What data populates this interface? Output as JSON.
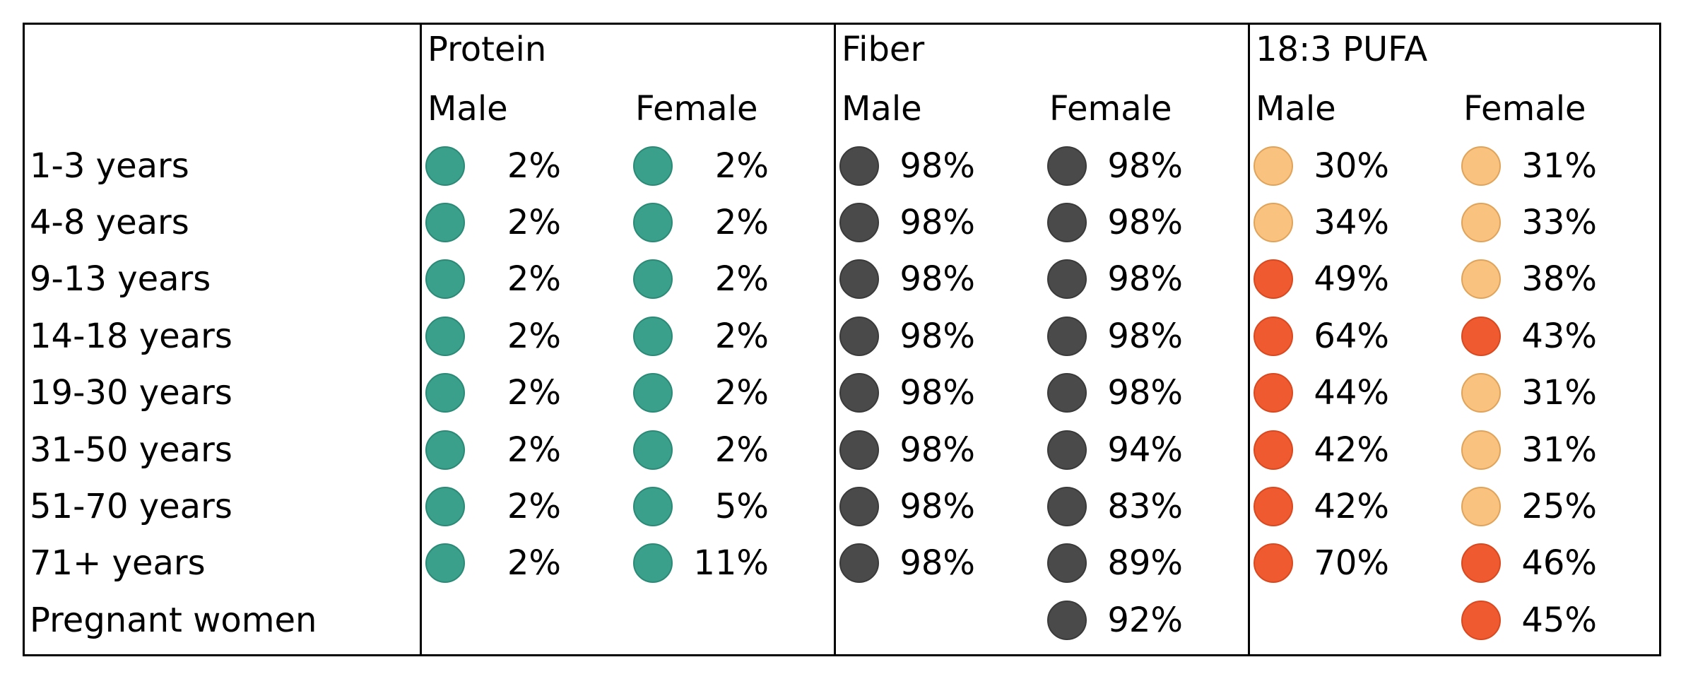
{
  "row_labels": [
    "1-3 years",
    "4-8 years",
    "9-13 years",
    "14-18 years",
    "19-30 years",
    "31-50 years",
    "51-70 years",
    "71+ years",
    "Pregnant women"
  ],
  "groups": [
    {
      "title": "Protein",
      "male_label": "Male",
      "female_label": "Female",
      "male": [
        "2%",
        "2%",
        "2%",
        "2%",
        "2%",
        "2%",
        "2%",
        "2%",
        null
      ],
      "female": [
        "2%",
        "2%",
        "2%",
        "2%",
        "2%",
        "2%",
        "5%",
        "11%",
        null
      ],
      "male_status": [
        "ok",
        "ok",
        "ok",
        "ok",
        "ok",
        "ok",
        "ok",
        "ok",
        null
      ],
      "female_status": [
        "ok",
        "ok",
        "ok",
        "ok",
        "ok",
        "ok",
        "ok",
        "ok",
        null
      ]
    },
    {
      "title": "Fiber",
      "male_label": "Male",
      "female_label": "Female",
      "male": [
        "98%",
        "98%",
        "98%",
        "98%",
        "98%",
        "98%",
        "98%",
        "98%",
        null
      ],
      "female": [
        "98%",
        "98%",
        "98%",
        "98%",
        "98%",
        "94%",
        "83%",
        "89%",
        "92%"
      ],
      "male_status": [
        "fiber",
        "fiber",
        "fiber",
        "fiber",
        "fiber",
        "fiber",
        "fiber",
        "fiber",
        null
      ],
      "female_status": [
        "fiber",
        "fiber",
        "fiber",
        "fiber",
        "fiber",
        "fiber",
        "fiber",
        "fiber",
        "fiber"
      ]
    },
    {
      "title": "18:3 PUFA",
      "male_label": "Male",
      "female_label": "Female",
      "male": [
        "30%",
        "34%",
        "49%",
        "64%",
        "44%",
        "42%",
        "42%",
        "70%",
        null
      ],
      "female": [
        "31%",
        "33%",
        "38%",
        "43%",
        "31%",
        "31%",
        "25%",
        "46%",
        "45%"
      ],
      "male_status": [
        "low",
        "low",
        "high",
        "high",
        "high",
        "high",
        "high",
        "high",
        null
      ],
      "female_status": [
        "low",
        "low",
        "low",
        "high",
        "low",
        "low",
        "low",
        "high",
        "high"
      ]
    }
  ],
  "colors": {
    "protein": "#3aa08c",
    "fiber": "#4a4a4a",
    "pufa_low": "#f9c27e",
    "pufa_high": "#f05a30"
  }
}
